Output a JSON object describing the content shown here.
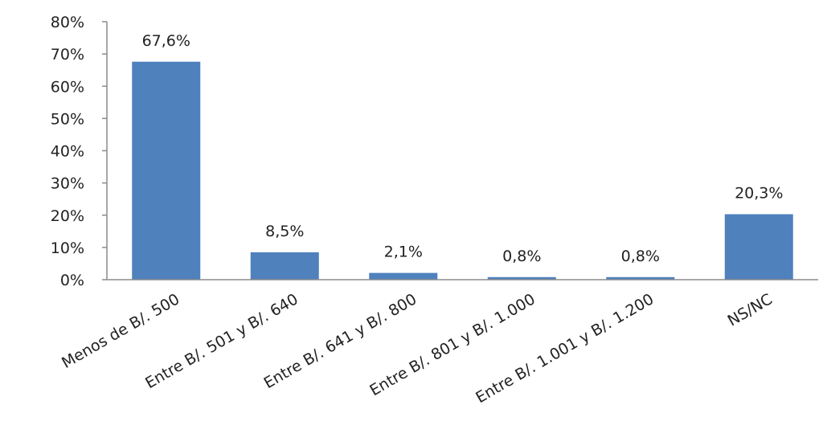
{
  "chart_data": {
    "type": "bar",
    "title": "",
    "xlabel": "",
    "ylabel": "",
    "categories": [
      "Menos de B/. 500",
      "Entre B/. 501 y B/. 640",
      "Entre B/. 641 y B/. 800",
      "Entre B/. 801 y B/. 1.000",
      "Entre B/. 1.001 y B/. 1.200",
      "NS/NC"
    ],
    "values": [
      67.6,
      8.5,
      2.1,
      0.8,
      0.8,
      20.3
    ],
    "data_labels": [
      "67,6%",
      "8,5%",
      "2,1%",
      "0,8%",
      "0,8%",
      "20,3%"
    ],
    "ylim": [
      0,
      80
    ],
    "yticks": [
      0,
      10,
      20,
      30,
      40,
      50,
      60,
      70,
      80
    ],
    "ytick_labels": [
      "0%",
      "10%",
      "20%",
      "30%",
      "40%",
      "50%",
      "60%",
      "70%",
      "80%"
    ],
    "bar_color": "#4f81bd",
    "grid": false,
    "legend": "none"
  }
}
